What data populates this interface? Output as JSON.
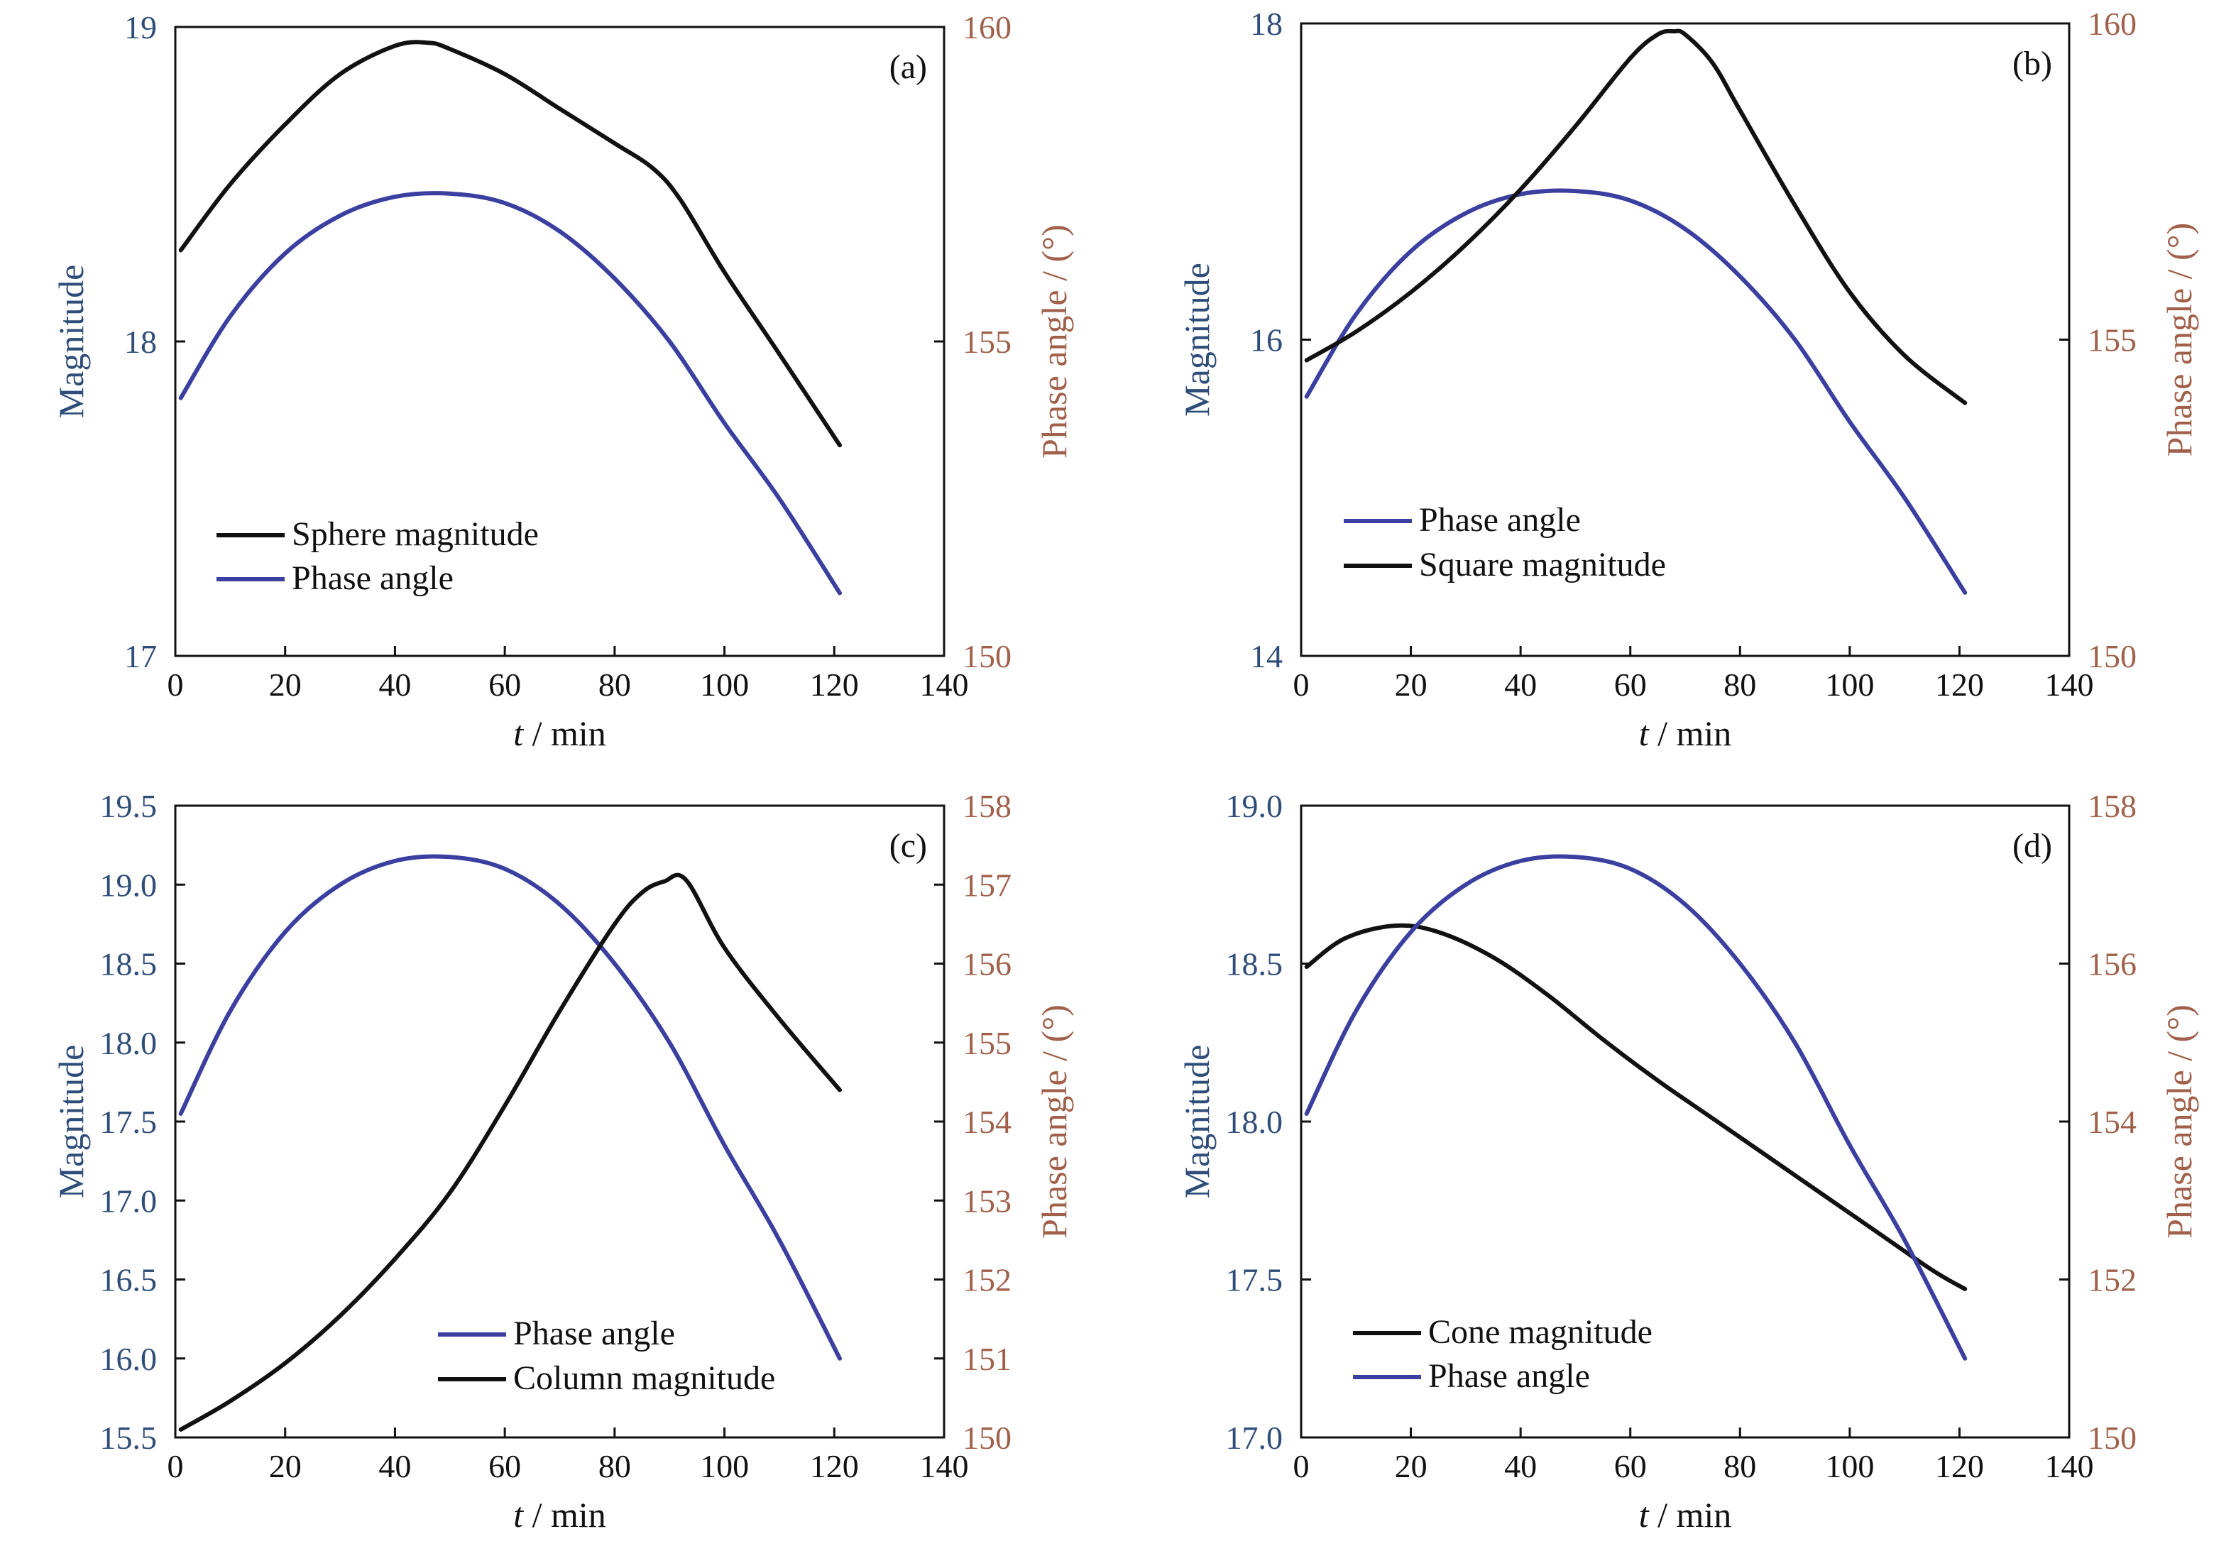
{
  "colors": {
    "magnitude_axis": "#2e4d78",
    "phase_axis": "#a0604a",
    "magnitude_line": "#111111",
    "phase_line": "#3a3fa0",
    "frame": "#111111"
  },
  "axis_text": {
    "x_italic": "t",
    "x_rest": " / min",
    "y_left": "Magnitude",
    "y_right": "Phase angle / (°)"
  },
  "chart_data": [
    {
      "type": "line",
      "panel_label": "(a)",
      "xlabel": "t / min",
      "ylabel": "Magnitude",
      "ylabel_right": "Phase angle / (°)",
      "xlim": [
        0,
        140
      ],
      "ylim": [
        17,
        19
      ],
      "ylim_right": [
        150,
        160
      ],
      "x_ticks": [
        "0",
        "20",
        "40",
        "60",
        "80",
        "100",
        "120",
        "140"
      ],
      "y_ticks": [
        "17",
        "18",
        "19"
      ],
      "y_ticks_right": [
        "150",
        "155",
        "160"
      ],
      "grid": false,
      "legend_position": "lower-left",
      "series": [
        {
          "name": "Sphere magnitude",
          "axis": "left",
          "color": "#111111",
          "x": [
            1,
            10,
            20,
            30,
            40,
            46,
            50,
            60,
            70,
            80,
            87,
            92,
            100,
            110,
            121
          ],
          "y": [
            18.29,
            18.5,
            18.69,
            18.85,
            18.94,
            18.95,
            18.93,
            18.85,
            18.74,
            18.63,
            18.55,
            18.45,
            18.22,
            17.96,
            17.67
          ]
        },
        {
          "name": "Phase angle",
          "axis": "right",
          "color": "#3a3fa0",
          "x": [
            1,
            10,
            20,
            30,
            40,
            50,
            60,
            70,
            80,
            90,
            100,
            110,
            121
          ],
          "y": [
            154.1,
            155.4,
            156.4,
            157.0,
            157.3,
            157.35,
            157.2,
            156.75,
            156.0,
            155.0,
            153.7,
            152.5,
            151.0
          ]
        }
      ]
    },
    {
      "type": "line",
      "panel_label": "(b)",
      "xlabel": "t / min",
      "ylabel": "Magnitude",
      "ylabel_right": "Phase angle / (°)",
      "xlim": [
        0,
        140
      ],
      "ylim": [
        14,
        18
      ],
      "ylim_right": [
        150,
        160
      ],
      "x_ticks": [
        "0",
        "20",
        "40",
        "60",
        "80",
        "100",
        "120",
        "140"
      ],
      "y_ticks": [
        "14",
        "16",
        "18"
      ],
      "y_ticks_right": [
        "150",
        "155",
        "160"
      ],
      "grid": false,
      "legend_position": "lower-left",
      "series": [
        {
          "name": "Phase angle",
          "axis": "right",
          "color": "#3a3fa0",
          "x": [
            1,
            10,
            20,
            30,
            40,
            50,
            60,
            70,
            80,
            90,
            100,
            110,
            121
          ],
          "y": [
            154.1,
            155.4,
            156.4,
            157.0,
            157.3,
            157.35,
            157.2,
            156.75,
            156.0,
            155.0,
            153.7,
            152.5,
            151.0
          ]
        },
        {
          "name": "Square magnitude",
          "axis": "left",
          "color": "#111111",
          "x": [
            1,
            10,
            20,
            30,
            40,
            50,
            60,
            65,
            68,
            70,
            75,
            80,
            90,
            100,
            110,
            121
          ],
          "y": [
            15.87,
            16.05,
            16.3,
            16.6,
            16.95,
            17.35,
            17.78,
            17.93,
            17.95,
            17.93,
            17.75,
            17.45,
            16.85,
            16.3,
            15.9,
            15.6
          ]
        }
      ]
    },
    {
      "type": "line",
      "panel_label": "(c)",
      "xlabel": "t / min",
      "ylabel": "Magnitude",
      "ylabel_right": "Phase angle / (°)",
      "xlim": [
        0,
        140
      ],
      "ylim": [
        15.5,
        19.5
      ],
      "ylim_right": [
        150,
        158
      ],
      "x_ticks": [
        "0",
        "20",
        "40",
        "60",
        "80",
        "100",
        "120",
        "140"
      ],
      "y_ticks": [
        "15.5",
        "16.0",
        "16.5",
        "17.0",
        "17.5",
        "18.0",
        "18.5",
        "19.0",
        "19.5"
      ],
      "y_ticks_right": [
        "150",
        "151",
        "152",
        "153",
        "154",
        "155",
        "156",
        "157",
        "158"
      ],
      "grid": false,
      "legend_position": "bottom-center",
      "series": [
        {
          "name": "Phase angle",
          "axis": "right",
          "color": "#3a3fa0",
          "x": [
            1,
            10,
            20,
            30,
            40,
            50,
            60,
            70,
            80,
            90,
            100,
            110,
            121
          ],
          "y": [
            154.1,
            155.4,
            156.4,
            157.0,
            157.3,
            157.35,
            157.2,
            156.75,
            156.0,
            155.0,
            153.7,
            152.5,
            151.0
          ]
        },
        {
          "name": "Column magnitude",
          "axis": "left",
          "color": "#111111",
          "x": [
            1,
            10,
            20,
            30,
            40,
            50,
            60,
            70,
            80,
            85,
            89,
            93,
            100,
            110,
            121
          ],
          "y": [
            15.55,
            15.73,
            15.97,
            16.27,
            16.63,
            17.05,
            17.6,
            18.2,
            18.75,
            18.95,
            19.02,
            19.03,
            18.6,
            18.15,
            17.7
          ]
        }
      ]
    },
    {
      "type": "line",
      "panel_label": "(d)",
      "xlabel": "t / min",
      "ylabel": "Magnitude",
      "ylabel_right": "Phase angle / (°)",
      "xlim": [
        0,
        140
      ],
      "ylim": [
        17.0,
        19.0
      ],
      "ylim_right": [
        150,
        158
      ],
      "x_ticks": [
        "0",
        "20",
        "40",
        "60",
        "80",
        "100",
        "120",
        "140"
      ],
      "y_ticks": [
        "17.0",
        "17.5",
        "18.0",
        "18.5",
        "19.0"
      ],
      "y_ticks_right": [
        "150",
        "152",
        "154",
        "156",
        "158"
      ],
      "grid": false,
      "legend_position": "lower-left",
      "series": [
        {
          "name": "Cone magnitude",
          "axis": "left",
          "color": "#111111",
          "x": [
            1,
            8,
            17,
            25,
            35,
            45,
            55,
            65,
            75,
            85,
            95,
            105,
            115,
            121
          ],
          "y": [
            18.49,
            18.58,
            18.62,
            18.6,
            18.52,
            18.4,
            18.26,
            18.13,
            18.01,
            17.89,
            17.77,
            17.65,
            17.53,
            17.47
          ]
        },
        {
          "name": "Phase angle",
          "axis": "right",
          "color": "#3a3fa0",
          "x": [
            1,
            10,
            20,
            30,
            40,
            50,
            60,
            70,
            80,
            90,
            100,
            110,
            121
          ],
          "y": [
            154.1,
            155.4,
            156.4,
            157.0,
            157.3,
            157.35,
            157.2,
            156.75,
            156.0,
            155.0,
            153.7,
            152.5,
            151.0
          ]
        }
      ]
    }
  ]
}
